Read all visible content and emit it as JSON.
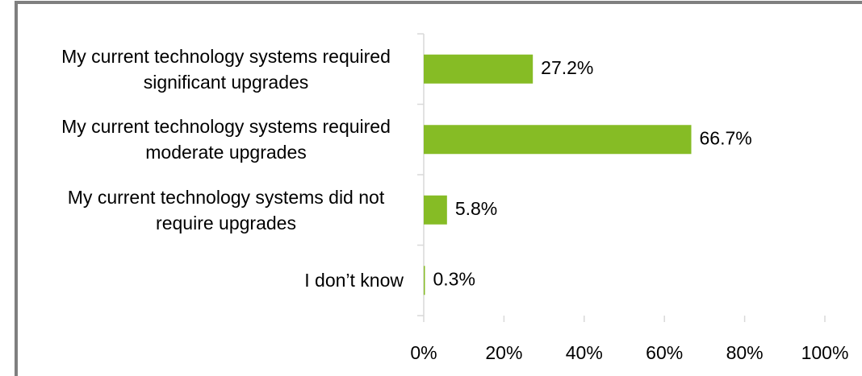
{
  "chart_data": {
    "type": "bar",
    "orientation": "horizontal",
    "categories": [
      "My current technology systems required significant upgrades",
      "My current technology systems required moderate upgrades",
      "My current technology systems did not require upgrades",
      "I don’t know"
    ],
    "values": [
      27.2,
      66.7,
      5.8,
      0.3
    ],
    "value_labels": [
      "27.2%",
      "66.7%",
      "5.8%",
      "0.3%"
    ],
    "color": "#86bc25",
    "xlim": [
      0,
      100
    ],
    "xticks": [
      {
        "value": 0,
        "label": "0%"
      },
      {
        "value": 20,
        "label": "20%"
      },
      {
        "value": 40,
        "label": "40%"
      },
      {
        "value": 60,
        "label": "60%"
      },
      {
        "value": 80,
        "label": "80%"
      },
      {
        "value": 100,
        "label": "100%"
      }
    ],
    "grid": false
  }
}
